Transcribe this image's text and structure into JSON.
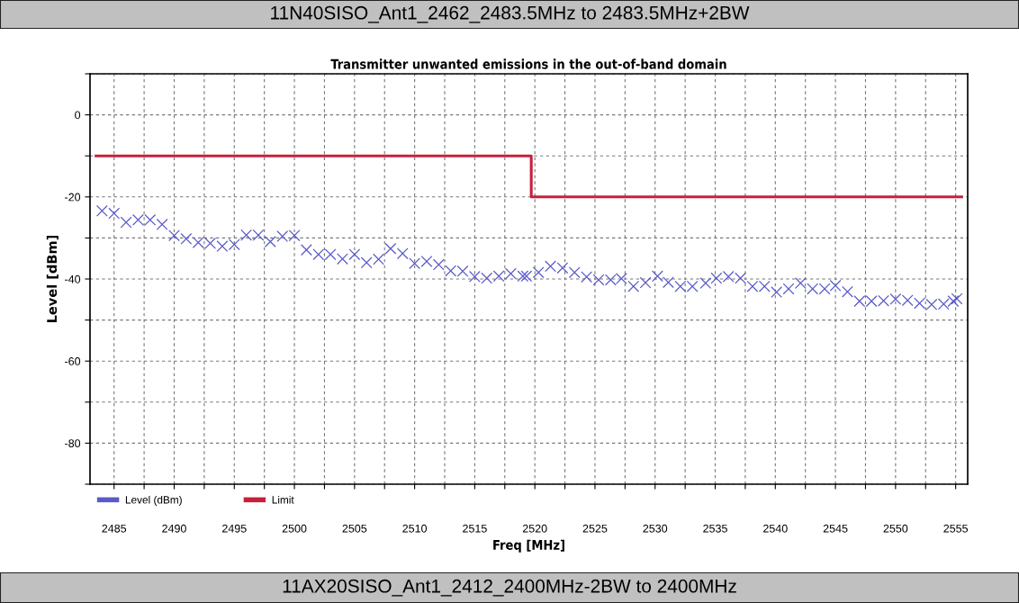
{
  "chart_data": {
    "type": "scatter",
    "title": "11N40SISO_Ant1_2462_2483.5MHz to 2483.5MHz+2BW",
    "subtitle": "Transmitter unwanted emissions in the out-of-band domain",
    "xlabel": "Freq [MHz]",
    "ylabel": "Level [dBm]",
    "annotations": [
      "11AX20SISO_Ant1_2412_2400MHz-2BW to 2400MHz"
    ],
    "series": [
      {
        "name": "Level (dBm)",
        "marker": "cross",
        "color": "#5a5ac8",
        "x": [
          2484,
          2485,
          2486,
          2487,
          2488,
          2489,
          2490,
          2491,
          2492,
          2493,
          2494,
          2495,
          2496,
          2497,
          2498,
          2499,
          2500,
          2501,
          2502,
          2503,
          2504,
          2505,
          2506,
          2507,
          2508,
          2509,
          2510,
          2511,
          2512,
          2513,
          2514,
          2515,
          2516,
          2517,
          2518,
          2519,
          2519.3,
          2520.3,
          2521.3,
          2522.3,
          2523.3,
          2524.3,
          2525.3,
          2526.3,
          2527.2,
          2528.2,
          2529.2,
          2530.2,
          2531.1,
          2532.1,
          2533.1,
          2534.2,
          2535.1,
          2536.1,
          2537.1,
          2538.1,
          2539.1,
          2540.1,
          2541.1,
          2542.1,
          2543.1,
          2544.1,
          2545,
          2546,
          2547,
          2548,
          2549,
          2550,
          2551,
          2552,
          2553,
          2554,
          2554.8,
          2555.1
        ],
        "values": [
          -23.4,
          -24.0,
          -26.2,
          -25.6,
          -25.6,
          -26.7,
          -29.4,
          -30.2,
          -31.1,
          -31.3,
          -32.0,
          -31.6,
          -29.3,
          -29.3,
          -30.9,
          -29.6,
          -29.4,
          -32.9,
          -34.0,
          -34.0,
          -35.1,
          -34.0,
          -36.0,
          -35.2,
          -32.6,
          -33.8,
          -36.2,
          -35.7,
          -36.5,
          -38.0,
          -38.1,
          -39.4,
          -39.8,
          -39.3,
          -38.7,
          -39.3,
          -39.3,
          -38.4,
          -36.9,
          -37.3,
          -38.4,
          -39.5,
          -40.2,
          -40.2,
          -39.9,
          -41.8,
          -40.9,
          -39.3,
          -40.8,
          -41.8,
          -41.8,
          -41.0,
          -39.8,
          -39.4,
          -39.8,
          -41.8,
          -41.8,
          -43.2,
          -42.4,
          -41.0,
          -42.4,
          -42.4,
          -41.6,
          -43.1,
          -45.4,
          -45.4,
          -45.3,
          -44.9,
          -45.2,
          -45.9,
          -46.2,
          -46.1,
          -45.4,
          -44.8
        ]
      },
      {
        "name": "Limit",
        "type": "line",
        "color": "#c8203c",
        "x": [
          2483.5,
          2519.7,
          2519.7,
          2555.5
        ],
        "values": [
          -10,
          -10,
          -20,
          -20
        ]
      }
    ],
    "xlim": [
      2483,
      2556
    ],
    "ylim": [
      -90,
      10
    ],
    "xticks": [
      2485,
      {
        "value": 2487.5,
        "label": null
      },
      2490,
      {
        "value": 2492.5,
        "label": null
      },
      2495,
      {
        "value": 2497.5,
        "label": null
      },
      2500,
      {
        "value": 2502.5,
        "label": null
      },
      2505,
      {
        "value": 2507.5,
        "label": null
      },
      2510,
      {
        "value": 2512.5,
        "label": null
      },
      2515,
      {
        "value": 2517.5,
        "label": null
      },
      2520,
      {
        "value": 2522.5,
        "label": null
      },
      2525,
      {
        "value": 2527.5,
        "label": null
      },
      2530,
      {
        "value": 2532.5,
        "label": null
      },
      2535,
      {
        "value": 2537.5,
        "label": null
      },
      2540,
      {
        "value": 2542.5,
        "label": null
      },
      2545,
      {
        "value": 2547.5,
        "label": null
      },
      2550,
      {
        "value": 2552.5,
        "label": null
      },
      2555
    ],
    "yticks": [
      {
        "value": -90,
        "label": null
      },
      -80,
      {
        "value": -70,
        "label": null
      },
      -60,
      {
        "value": -50,
        "label": null
      },
      -40,
      {
        "value": -30,
        "label": null
      },
      -20,
      {
        "value": -10,
        "label": null
      },
      0,
      {
        "value": 10,
        "label": null
      }
    ],
    "grid": true,
    "legend": "bottom left"
  }
}
